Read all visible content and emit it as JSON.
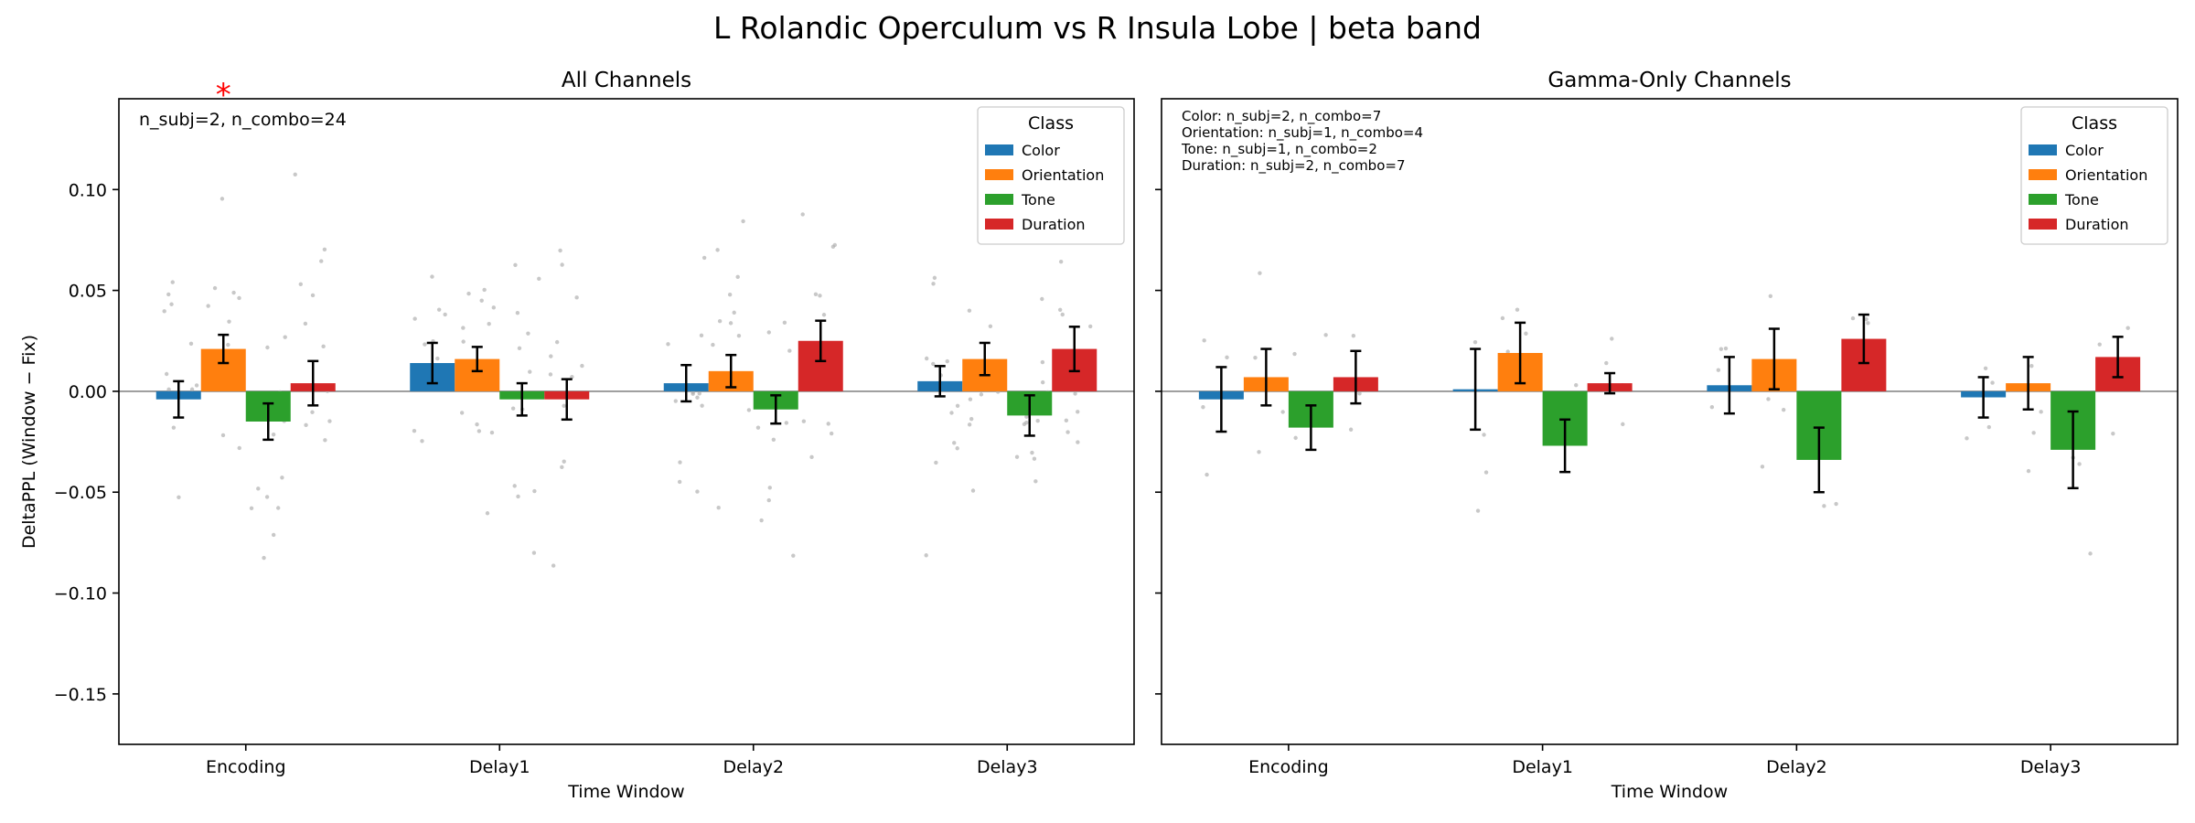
{
  "figure": {
    "suptitle": "L Rolandic Operculum vs R Insula Lobe  |  beta band",
    "ylabel": "DeltaPPL (Window − Fix)"
  },
  "chart_data": [
    {
      "type": "bar",
      "title": "All Channels",
      "xlabel": "Time Window",
      "ylabel": "DeltaPPL (Window − Fix)",
      "ylim": [
        -0.175,
        0.145
      ],
      "yticks": [
        -0.15,
        -0.1,
        -0.05,
        0.0,
        0.05,
        0.1
      ],
      "ytick_labels": [
        "−0.15",
        "−0.10",
        "−0.05",
        "0.00",
        "0.05",
        "0.10"
      ],
      "categories": [
        "Encoding",
        "Delay1",
        "Delay2",
        "Delay3"
      ],
      "legend": {
        "title": "Class",
        "placement": "top-right"
      },
      "annotation": "n_subj=2, n_combo=24",
      "significance": [
        {
          "category": "Encoding",
          "series": "Orientation",
          "marker": "*"
        }
      ],
      "series": [
        {
          "name": "Color",
          "color": "#1f77b4",
          "values": [
            -0.004,
            0.014,
            0.004,
            0.005
          ],
          "errors": [
            0.009,
            0.01,
            0.009,
            0.0075
          ]
        },
        {
          "name": "Orientation",
          "color": "#ff7f0e",
          "values": [
            0.021,
            0.016,
            0.01,
            0.016
          ],
          "errors": [
            0.007,
            0.006,
            0.008,
            0.008
          ]
        },
        {
          "name": "Tone",
          "color": "#2ca02c",
          "values": [
            -0.015,
            -0.004,
            -0.009,
            -0.012
          ],
          "errors": [
            0.009,
            0.008,
            0.007,
            0.01
          ]
        },
        {
          "name": "Duration",
          "color": "#d62728",
          "values": [
            0.004,
            -0.004,
            0.025,
            0.021
          ],
          "errors": [
            0.011,
            0.01,
            0.01,
            0.011
          ]
        }
      ]
    },
    {
      "type": "bar",
      "title": "Gamma-Only Channels",
      "xlabel": "Time Window",
      "ylabel": "",
      "ylim": [
        -0.175,
        0.145
      ],
      "categories": [
        "Encoding",
        "Delay1",
        "Delay2",
        "Delay3"
      ],
      "legend": {
        "title": "Class",
        "placement": "top-right"
      },
      "annotation_lines": [
        "Color: n_subj=2, n_combo=7",
        "Orientation: n_subj=1, n_combo=4",
        "Tone: n_subj=1, n_combo=2",
        "Duration: n_subj=2, n_combo=7"
      ],
      "series": [
        {
          "name": "Color",
          "color": "#1f77b4",
          "values": [
            -0.004,
            0.001,
            0.003,
            -0.003
          ],
          "errors": [
            0.016,
            0.02,
            0.014,
            0.01
          ]
        },
        {
          "name": "Orientation",
          "color": "#ff7f0e",
          "values": [
            0.007,
            0.019,
            0.016,
            0.004
          ],
          "errors": [
            0.014,
            0.015,
            0.015,
            0.013
          ]
        },
        {
          "name": "Tone",
          "color": "#2ca02c",
          "values": [
            -0.018,
            -0.027,
            -0.034,
            -0.029
          ],
          "errors": [
            0.011,
            0.013,
            0.016,
            0.019
          ]
        },
        {
          "name": "Duration",
          "color": "#d62728",
          "values": [
            0.007,
            0.004,
            0.026,
            0.017
          ],
          "errors": [
            0.013,
            0.005,
            0.012,
            0.01
          ]
        }
      ]
    }
  ]
}
